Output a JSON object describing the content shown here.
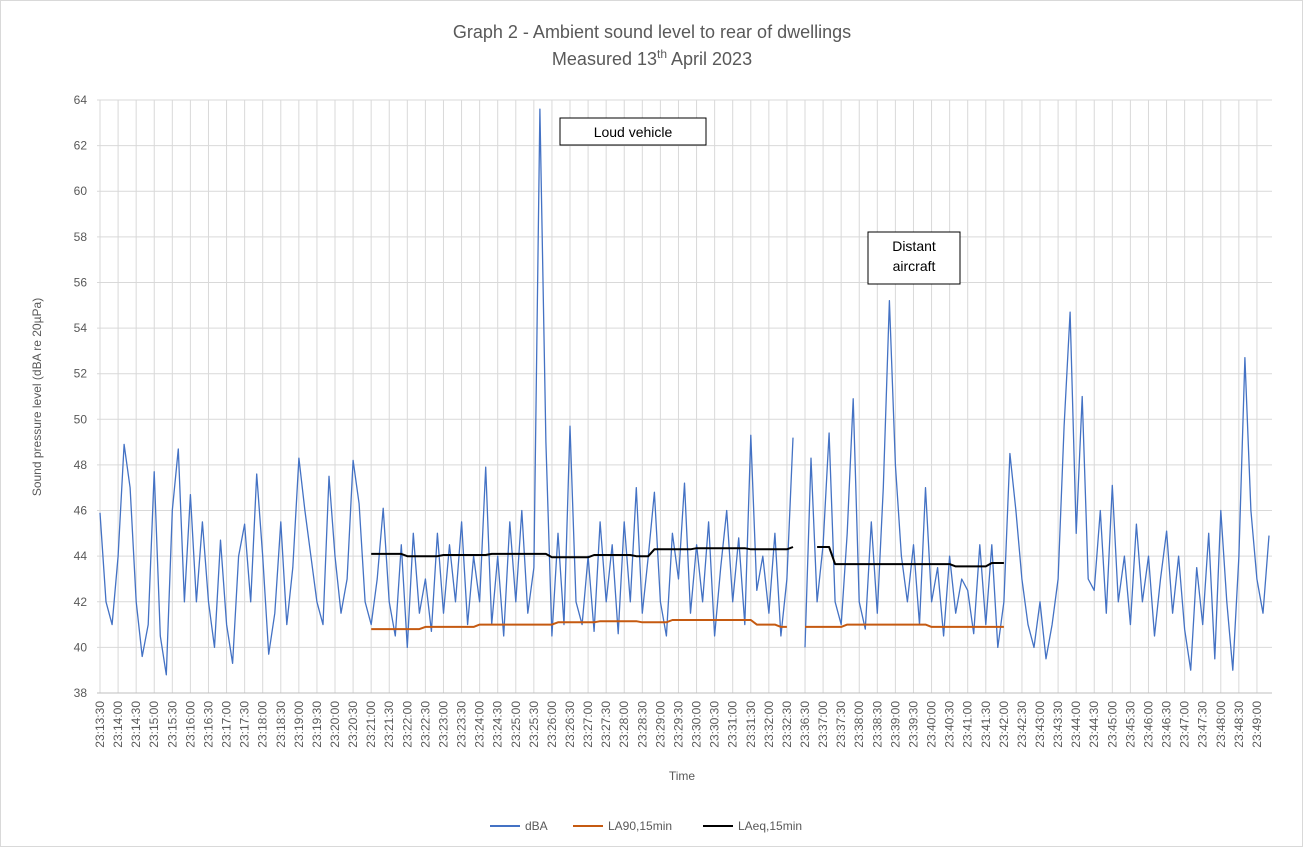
{
  "chart_data": {
    "type": "line",
    "title": "Graph 2 - Ambient sound level to rear of dwellings",
    "subtitle": [
      "Measured 13",
      "th",
      " April 2023"
    ],
    "x_label": "Time",
    "y_label": "Sound pressure level (dBA re 20µPa)",
    "ylim": [
      38,
      64
    ],
    "yticks": [
      38,
      40,
      42,
      44,
      46,
      48,
      50,
      52,
      54,
      56,
      58,
      60,
      62,
      64
    ],
    "grid": true,
    "legend": "bottom",
    "annotations": [
      [
        "Loud vehicle"
      ],
      [
        "Distant",
        "aircraft"
      ]
    ],
    "categories": [
      "23:13:30",
      null,
      null,
      "23:14:00",
      null,
      null,
      "23:14:30",
      null,
      null,
      "23:15:00",
      null,
      null,
      "23:15:30",
      null,
      null,
      "23:16:00",
      null,
      null,
      "23:16:30",
      null,
      null,
      "23:17:00",
      null,
      null,
      "23:17:30",
      null,
      null,
      "23:18:00",
      null,
      null,
      "23:18:30",
      null,
      null,
      "23:19:00",
      null,
      null,
      "23:19:30",
      null,
      null,
      "23:20:00",
      null,
      null,
      "23:20:30",
      null,
      null,
      "23:21:00",
      null,
      null,
      "23:21:30",
      null,
      null,
      "23:22:00",
      null,
      null,
      "23:22:30",
      null,
      null,
      "23:23:00",
      null,
      null,
      "23:23:30",
      null,
      null,
      "23:24:00",
      null,
      null,
      "23:24:30",
      null,
      null,
      "23:25:00",
      null,
      null,
      "23:25:30",
      null,
      null,
      "23:26:00",
      null,
      null,
      "23:26:30",
      null,
      null,
      "23:27:00",
      null,
      null,
      "23:27:30",
      null,
      null,
      "23:28:00",
      null,
      null,
      "23:28:30",
      null,
      null,
      "23:29:00",
      null,
      null,
      "23:29:30",
      null,
      null,
      "23:30:00",
      null,
      null,
      "23:30:30",
      null,
      null,
      "23:31:00",
      null,
      null,
      "23:31:30",
      null,
      null,
      "23:32:00",
      null,
      null,
      "23:32:30",
      null,
      null,
      "23:36:30",
      null,
      null,
      "23:37:00",
      null,
      null,
      "23:37:30",
      null,
      null,
      "23:38:00",
      null,
      null,
      "23:38:30",
      null,
      null,
      "23:39:00",
      null,
      null,
      "23:39:30",
      null,
      null,
      "23:40:00",
      null,
      null,
      "23:40:30",
      null,
      null,
      "23:41:00",
      null,
      null,
      "23:41:30",
      null,
      null,
      "23:42:00",
      null,
      null,
      "23:42:30",
      null,
      null,
      "23:43:00",
      null,
      null,
      "23:43:30",
      null,
      null,
      "23:44:00",
      null,
      null,
      "23:44:30",
      null,
      null,
      "23:45:00",
      null,
      null,
      "23:45:30",
      null,
      null,
      "23:46:00",
      null,
      null,
      "23:46:30",
      null,
      null,
      "23:47:00",
      null,
      null,
      "23:47:30",
      null,
      null,
      "23:48:00",
      null,
      null,
      "23:48:30",
      null,
      null,
      "23:49:00",
      null,
      null
    ],
    "series": [
      {
        "name": "dBA",
        "color": "#4472c4",
        "values": [
          45.9,
          42,
          41,
          44,
          48.9,
          47,
          42,
          39.6,
          41,
          47.7,
          40.5,
          38.8,
          46,
          48.7,
          42,
          46.7,
          42,
          45.5,
          42,
          40,
          44.7,
          41,
          39.3,
          44,
          45.4,
          42,
          47.6,
          44,
          39.7,
          41.5,
          45.5,
          41,
          43.5,
          48.3,
          46,
          44,
          42,
          41,
          47.5,
          44,
          41.5,
          43,
          48.2,
          46.3,
          42,
          41,
          43,
          46.1,
          42,
          40.5,
          44.5,
          40,
          45,
          41.5,
          43,
          40.7,
          45,
          41.5,
          44.5,
          42,
          45.5,
          41,
          44,
          42,
          47.9,
          41,
          44,
          40.5,
          45.5,
          42,
          46,
          41.5,
          43.5,
          63.6,
          49,
          40.5,
          45,
          41,
          49.7,
          42,
          41,
          44,
          40.7,
          45.5,
          42,
          44.5,
          40.6,
          45.5,
          42,
          47,
          41.5,
          44,
          46.8,
          42,
          40.5,
          45,
          43,
          47.2,
          41.5,
          44.5,
          42,
          45.5,
          40.5,
          43.5,
          46,
          42,
          44.8,
          41,
          49.3,
          42.5,
          44,
          41.5,
          45,
          40.5,
          43,
          49.2,
          null,
          40,
          48.3,
          42,
          44.5,
          49.4,
          42,
          41,
          45,
          50.9,
          42,
          40.8,
          45.5,
          41.5,
          47,
          55.2,
          48,
          44,
          42,
          44.5,
          41,
          47,
          42,
          43.5,
          40.5,
          44,
          41.5,
          43,
          42.5,
          40.6,
          44.5,
          41,
          44.5,
          40,
          42,
          48.5,
          46,
          43,
          41,
          40,
          42,
          39.5,
          41,
          43,
          49.7,
          54.7,
          45,
          51,
          43,
          42.5,
          46,
          41.5,
          47.1,
          42,
          44,
          41,
          45.4,
          42,
          44,
          40.5,
          43,
          45.1,
          41.5,
          44,
          40.8,
          39,
          43.5,
          41,
          45,
          39.5,
          46,
          42,
          39,
          44,
          52.7,
          46,
          43,
          41.5,
          44.9
        ]
      },
      {
        "name": "LA90,15min",
        "color": "#c55a11",
        "values": [
          null,
          null,
          null,
          null,
          null,
          null,
          null,
          null,
          null,
          null,
          null,
          null,
          null,
          null,
          null,
          null,
          null,
          null,
          null,
          null,
          null,
          null,
          null,
          null,
          null,
          null,
          null,
          null,
          null,
          null,
          null,
          null,
          null,
          null,
          null,
          null,
          null,
          null,
          null,
          null,
          null,
          null,
          null,
          null,
          null,
          40.8,
          40.8,
          40.8,
          40.8,
          40.8,
          40.8,
          40.8,
          40.8,
          40.8,
          40.9,
          40.9,
          40.9,
          40.9,
          40.9,
          40.9,
          40.9,
          40.9,
          40.9,
          41.0,
          41.0,
          41.0,
          41.0,
          41.0,
          41.0,
          41.0,
          41.0,
          41.0,
          41.0,
          41.0,
          41.0,
          41.0,
          41.1,
          41.1,
          41.1,
          41.1,
          41.1,
          41.1,
          41.1,
          41.15,
          41.15,
          41.15,
          41.15,
          41.15,
          41.15,
          41.15,
          41.1,
          41.1,
          41.1,
          41.1,
          41.1,
          41.2,
          41.2,
          41.2,
          41.2,
          41.2,
          41.2,
          41.2,
          41.2,
          41.2,
          41.2,
          41.2,
          41.2,
          41.2,
          41.2,
          41.0,
          41.0,
          41.0,
          41.0,
          40.9,
          40.9,
          null,
          null,
          40.9,
          40.9,
          40.9,
          40.9,
          40.9,
          40.9,
          40.9,
          41.0,
          41.0,
          41.0,
          41.0,
          41.0,
          41.0,
          41.0,
          41.0,
          41.0,
          41.0,
          41.0,
          41.0,
          41.0,
          41.0,
          40.9,
          40.9,
          40.9,
          40.9,
          40.9,
          40.9,
          40.9,
          40.9,
          40.9,
          40.9,
          40.9,
          40.9,
          40.9,
          null,
          null,
          null,
          null,
          null,
          null,
          null,
          null,
          null,
          null,
          null,
          null,
          null,
          null,
          null,
          null,
          null,
          null,
          null,
          null,
          null,
          null,
          null,
          null,
          null,
          null,
          null,
          null,
          null,
          null,
          null,
          null,
          null,
          null,
          null,
          null,
          null,
          null,
          null,
          null,
          null,
          null,
          null,
          null
        ]
      },
      {
        "name": "LAeq,15min",
        "color": "#000000",
        "values": [
          null,
          null,
          null,
          null,
          null,
          null,
          null,
          null,
          null,
          null,
          null,
          null,
          null,
          null,
          null,
          null,
          null,
          null,
          null,
          null,
          null,
          null,
          null,
          null,
          null,
          null,
          null,
          null,
          null,
          null,
          null,
          null,
          null,
          null,
          null,
          null,
          null,
          null,
          null,
          null,
          null,
          null,
          null,
          null,
          null,
          44.1,
          44.1,
          44.1,
          44.1,
          44.1,
          44.1,
          44.0,
          44.0,
          44.0,
          44.0,
          44.0,
          44.0,
          44.05,
          44.05,
          44.05,
          44.05,
          44.05,
          44.05,
          44.05,
          44.05,
          44.1,
          44.1,
          44.1,
          44.1,
          44.1,
          44.1,
          44.1,
          44.1,
          44.1,
          44.1,
          43.95,
          43.95,
          43.95,
          43.95,
          43.95,
          43.95,
          43.95,
          44.05,
          44.05,
          44.05,
          44.05,
          44.05,
          44.05,
          44.05,
          44.0,
          44.0,
          44.0,
          44.3,
          44.3,
          44.3,
          44.3,
          44.3,
          44.3,
          44.3,
          44.35,
          44.35,
          44.35,
          44.35,
          44.35,
          44.35,
          44.35,
          44.35,
          44.35,
          44.3,
          44.3,
          44.3,
          44.3,
          44.3,
          44.3,
          44.3,
          44.4,
          null,
          null,
          null,
          44.4,
          44.4,
          44.4,
          43.65,
          43.65,
          43.65,
          43.65,
          43.65,
          43.65,
          43.65,
          43.65,
          43.65,
          43.65,
          43.65,
          43.65,
          43.65,
          43.65,
          43.65,
          43.65,
          43.65,
          43.65,
          43.65,
          43.65,
          43.55,
          43.55,
          43.55,
          43.55,
          43.55,
          43.55,
          43.7,
          43.7,
          43.7,
          null,
          null,
          null,
          null,
          null,
          null,
          null,
          null,
          null,
          null,
          null,
          null,
          null,
          null,
          null,
          null,
          null,
          null,
          null,
          null,
          null,
          null,
          null,
          null,
          null,
          null,
          null,
          null,
          null,
          null,
          null,
          null,
          null,
          null,
          null,
          null,
          null,
          null,
          null,
          null,
          null,
          null,
          null,
          null
        ]
      }
    ]
  }
}
